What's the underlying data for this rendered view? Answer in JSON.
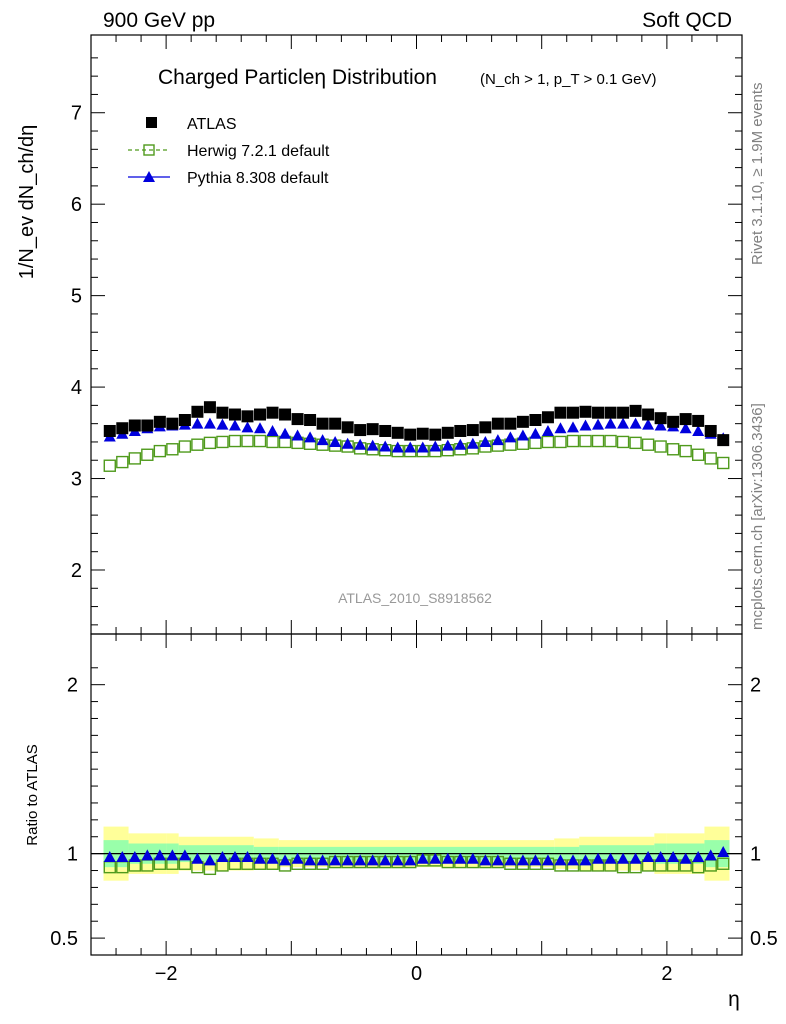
{
  "header": {
    "left": "900 GeV pp",
    "right": "Soft QCD"
  },
  "side_labels": {
    "rivet": "Rivet 3.1.10, ≥ 1.9M events",
    "mcplots": "mcplots.cern.ch [arXiv:1306.3436]"
  },
  "analysis_id": "ATLAS_2010_S8918562",
  "colors": {
    "atlas": "#000000",
    "herwig": "#4f9a1c",
    "pythia": "#0000dd",
    "band_outer": "#ffff99",
    "band_inner": "#99ffaa"
  },
  "chart_data": [
    {
      "type": "scatter",
      "panel": "main",
      "title": "Charged Particleη Distribution",
      "subtitle": "(N_ch > 1, p_T > 0.1 GeV)",
      "ylabel": "1/N_ev dN_ch/dη",
      "xlim": [
        -2.6,
        2.6
      ],
      "ylim": [
        1.3,
        7.85
      ],
      "yticks": [
        2,
        3,
        4,
        5,
        6,
        7
      ],
      "legend_position": "top-left",
      "x": [
        -2.45,
        -2.35,
        -2.25,
        -2.15,
        -2.05,
        -1.95,
        -1.85,
        -1.75,
        -1.65,
        -1.55,
        -1.45,
        -1.35,
        -1.25,
        -1.15,
        -1.05,
        -0.95,
        -0.85,
        -0.75,
        -0.65,
        -0.55,
        -0.45,
        -0.35,
        -0.25,
        -0.15,
        -0.05,
        0.05,
        0.15,
        0.25,
        0.35,
        0.45,
        0.55,
        0.65,
        0.75,
        0.85,
        0.95,
        1.05,
        1.15,
        1.25,
        1.35,
        1.45,
        1.55,
        1.65,
        1.75,
        1.85,
        1.95,
        2.05,
        2.15,
        2.25,
        2.35,
        2.45
      ],
      "series": [
        {
          "name": "ATLAS",
          "marker": "filled-square",
          "values": [
            3.52,
            3.55,
            3.58,
            3.58,
            3.62,
            3.6,
            3.64,
            3.73,
            3.78,
            3.72,
            3.7,
            3.68,
            3.7,
            3.72,
            3.7,
            3.65,
            3.64,
            3.6,
            3.6,
            3.56,
            3.53,
            3.54,
            3.52,
            3.5,
            3.48,
            3.49,
            3.48,
            3.5,
            3.52,
            3.53,
            3.56,
            3.6,
            3.6,
            3.62,
            3.64,
            3.67,
            3.72,
            3.72,
            3.73,
            3.72,
            3.72,
            3.72,
            3.74,
            3.7,
            3.66,
            3.62,
            3.65,
            3.63,
            3.52,
            3.42
          ]
        },
        {
          "name": "Herwig 7.2.1 default",
          "marker": "open-square",
          "line": "dashed",
          "values": [
            3.14,
            3.18,
            3.22,
            3.26,
            3.3,
            3.32,
            3.35,
            3.37,
            3.39,
            3.4,
            3.41,
            3.41,
            3.41,
            3.4,
            3.4,
            3.39,
            3.38,
            3.37,
            3.36,
            3.35,
            3.33,
            3.32,
            3.31,
            3.3,
            3.3,
            3.3,
            3.3,
            3.31,
            3.32,
            3.33,
            3.35,
            3.36,
            3.37,
            3.38,
            3.39,
            3.4,
            3.4,
            3.41,
            3.41,
            3.41,
            3.41,
            3.4,
            3.39,
            3.37,
            3.35,
            3.32,
            3.3,
            3.26,
            3.22,
            3.17
          ]
        },
        {
          "name": "Pythia 8.308 default",
          "marker": "filled-triangle",
          "line": "solid",
          "values": [
            3.46,
            3.49,
            3.52,
            3.55,
            3.57,
            3.58,
            3.59,
            3.6,
            3.6,
            3.59,
            3.58,
            3.56,
            3.55,
            3.52,
            3.49,
            3.47,
            3.45,
            3.42,
            3.4,
            3.38,
            3.37,
            3.36,
            3.35,
            3.34,
            3.34,
            3.34,
            3.35,
            3.36,
            3.37,
            3.38,
            3.4,
            3.42,
            3.45,
            3.47,
            3.49,
            3.52,
            3.55,
            3.56,
            3.58,
            3.59,
            3.6,
            3.6,
            3.6,
            3.59,
            3.58,
            3.57,
            3.55,
            3.52,
            3.49,
            3.44
          ]
        }
      ]
    },
    {
      "type": "scatter",
      "panel": "ratio",
      "ylabel": "Ratio to ATLAS",
      "xlabel": "η",
      "xlim": [
        -2.6,
        2.6
      ],
      "ylim": [
        0.4,
        2.3
      ],
      "yticks": [
        0.5,
        1,
        2
      ],
      "xticks": [
        -2,
        0,
        2
      ],
      "x": [
        -2.45,
        -2.35,
        -2.25,
        -2.15,
        -2.05,
        -1.95,
        -1.85,
        -1.75,
        -1.65,
        -1.55,
        -1.45,
        -1.35,
        -1.25,
        -1.15,
        -1.05,
        -0.95,
        -0.85,
        -0.75,
        -0.65,
        -0.55,
        -0.45,
        -0.35,
        -0.25,
        -0.15,
        -0.05,
        0.05,
        0.15,
        0.25,
        0.35,
        0.45,
        0.55,
        0.65,
        0.75,
        0.85,
        0.95,
        1.05,
        1.15,
        1.25,
        1.35,
        1.45,
        1.55,
        1.65,
        1.75,
        1.85,
        1.95,
        2.05,
        2.15,
        2.25,
        2.35,
        2.45
      ],
      "series": [
        {
          "name": "Herwig 7.2.1 default",
          "marker": "open-square",
          "values": [
            0.92,
            0.92,
            0.93,
            0.93,
            0.94,
            0.94,
            0.94,
            0.92,
            0.91,
            0.93,
            0.94,
            0.94,
            0.94,
            0.94,
            0.93,
            0.94,
            0.94,
            0.94,
            0.95,
            0.95,
            0.95,
            0.95,
            0.95,
            0.95,
            0.95,
            0.96,
            0.96,
            0.95,
            0.95,
            0.95,
            0.95,
            0.95,
            0.94,
            0.94,
            0.94,
            0.94,
            0.93,
            0.93,
            0.93,
            0.93,
            0.93,
            0.92,
            0.92,
            0.93,
            0.93,
            0.93,
            0.93,
            0.92,
            0.93,
            0.94
          ]
        },
        {
          "name": "Pythia 8.308 default",
          "marker": "filled-triangle",
          "values": [
            0.98,
            0.98,
            0.98,
            0.99,
            0.99,
            0.99,
            0.99,
            0.97,
            0.96,
            0.98,
            0.98,
            0.98,
            0.97,
            0.97,
            0.96,
            0.97,
            0.96,
            0.96,
            0.96,
            0.96,
            0.96,
            0.96,
            0.96,
            0.96,
            0.96,
            0.97,
            0.97,
            0.97,
            0.97,
            0.97,
            0.96,
            0.96,
            0.96,
            0.96,
            0.96,
            0.96,
            0.96,
            0.96,
            0.96,
            0.97,
            0.97,
            0.97,
            0.97,
            0.98,
            0.98,
            0.98,
            0.97,
            0.98,
            0.99,
            1.01
          ]
        }
      ],
      "bands": {
        "x_edges": [
          -2.5,
          -2.3,
          -2.0,
          -1.9,
          -1.3,
          -1.1,
          1.1,
          1.3,
          1.9,
          2.0,
          2.3,
          2.5
        ],
        "outer": [
          0.16,
          0.12,
          0.12,
          0.1,
          0.09,
          0.08,
          0.09,
          0.1,
          0.12,
          0.12,
          0.16
        ],
        "inner": [
          0.08,
          0.06,
          0.06,
          0.05,
          0.04,
          0.04,
          0.04,
          0.05,
          0.06,
          0.06,
          0.08
        ]
      }
    }
  ]
}
